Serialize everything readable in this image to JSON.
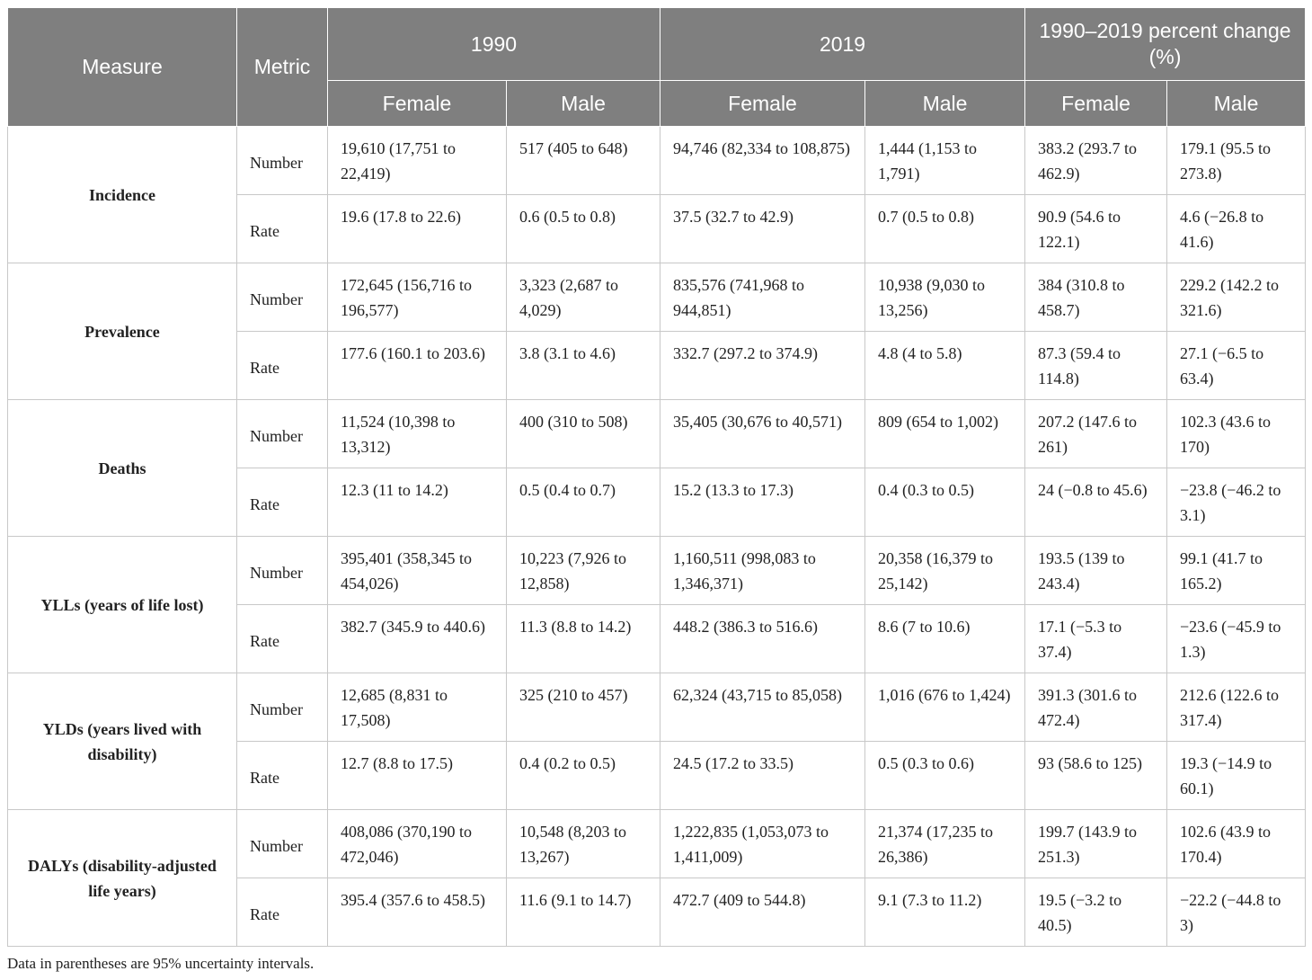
{
  "header": {
    "measure": "Measure",
    "metric": "Metric",
    "year1": "1990",
    "year2": "2019",
    "change": "1990–2019 percent change (%)",
    "female": "Female",
    "male": "Male"
  },
  "rows": [
    {
      "measure": "Incidence",
      "number": [
        "19,610 (17,751 to 22,419)",
        "517 (405 to 648)",
        "94,746 (82,334 to 108,875)",
        "1,444 (1,153 to 1,791)",
        "383.2 (293.7 to 462.9)",
        "179.1 (95.5 to 273.8)"
      ],
      "rate": [
        "19.6 (17.8 to 22.6)",
        "0.6 (0.5 to 0.8)",
        "37.5 (32.7 to 42.9)",
        "0.7 (0.5 to 0.8)",
        "90.9 (54.6 to 122.1)",
        "4.6 (−26.8 to 41.6)"
      ]
    },
    {
      "measure": "Prevalence",
      "number": [
        "172,645 (156,716 to 196,577)",
        "3,323 (2,687 to 4,029)",
        "835,576 (741,968 to 944,851)",
        "10,938 (9,030 to 13,256)",
        "384 (310.8 to 458.7)",
        "229.2 (142.2 to 321.6)"
      ],
      "rate": [
        "177.6 (160.1 to 203.6)",
        "3.8 (3.1 to 4.6)",
        "332.7 (297.2 to 374.9)",
        "4.8 (4 to 5.8)",
        "87.3 (59.4 to 114.8)",
        "27.1 (−6.5 to 63.4)"
      ]
    },
    {
      "measure": "Deaths",
      "number": [
        "11,524 (10,398 to 13,312)",
        "400 (310 to 508)",
        "35,405 (30,676 to 40,571)",
        "809 (654 to 1,002)",
        "207.2 (147.6 to 261)",
        "102.3 (43.6 to 170)"
      ],
      "rate": [
        "12.3 (11 to 14.2)",
        "0.5 (0.4 to 0.7)",
        "15.2 (13.3 to 17.3)",
        "0.4 (0.3 to 0.5)",
        "24 (−0.8 to 45.6)",
        "−23.8 (−46.2 to 3.1)"
      ]
    },
    {
      "measure": "YLLs (years of life lost)",
      "number": [
        "395,401 (358,345 to 454,026)",
        "10,223 (7,926 to 12,858)",
        "1,160,511 (998,083 to 1,346,371)",
        "20,358 (16,379 to 25,142)",
        "193.5 (139 to 243.4)",
        "99.1 (41.7 to 165.2)"
      ],
      "rate": [
        "382.7 (345.9 to 440.6)",
        "11.3 (8.8 to 14.2)",
        "448.2 (386.3 to 516.6)",
        "8.6 (7 to 10.6)",
        "17.1 (−5.3 to 37.4)",
        "−23.6 (−45.9 to 1.3)"
      ]
    },
    {
      "measure": "YLDs (years lived with disability)",
      "number": [
        "12,685 (8,831 to 17,508)",
        "325 (210 to 457)",
        "62,324 (43,715 to 85,058)",
        "1,016 (676 to 1,424)",
        "391.3 (301.6 to 472.4)",
        "212.6 (122.6 to 317.4)"
      ],
      "rate": [
        "12.7 (8.8 to 17.5)",
        "0.4 (0.2 to 0.5)",
        "24.5 (17.2 to 33.5)",
        "0.5 (0.3 to 0.6)",
        "93 (58.6 to 125)",
        "19.3 (−14.9 to 60.1)"
      ]
    },
    {
      "measure": "DALYs (disability-adjusted life years)",
      "number": [
        "408,086 (370,190 to 472,046)",
        "10,548 (8,203 to 13,267)",
        "1,222,835 (1,053,073 to 1,411,009)",
        "21,374 (17,235 to 26,386)",
        "199.7 (143.9 to 251.3)",
        "102.6 (43.9 to 170.4)"
      ],
      "rate": [
        "395.4 (357.6 to 458.5)",
        "11.6 (9.1 to 14.7)",
        "472.7 (409 to 544.8)",
        "9.1 (7.3 to 11.2)",
        "19.5 (−3.2 to 40.5)",
        "−22.2 (−44.8 to 3)"
      ]
    }
  ],
  "metric_labels": {
    "number": "Number",
    "rate": "Rate"
  },
  "footnote": "Data in parentheses are 95% uncertainty intervals.",
  "colors": {
    "header_bg": "#7f7f7f",
    "header_text": "#ffffff",
    "grid": "#c8c8c8"
  }
}
